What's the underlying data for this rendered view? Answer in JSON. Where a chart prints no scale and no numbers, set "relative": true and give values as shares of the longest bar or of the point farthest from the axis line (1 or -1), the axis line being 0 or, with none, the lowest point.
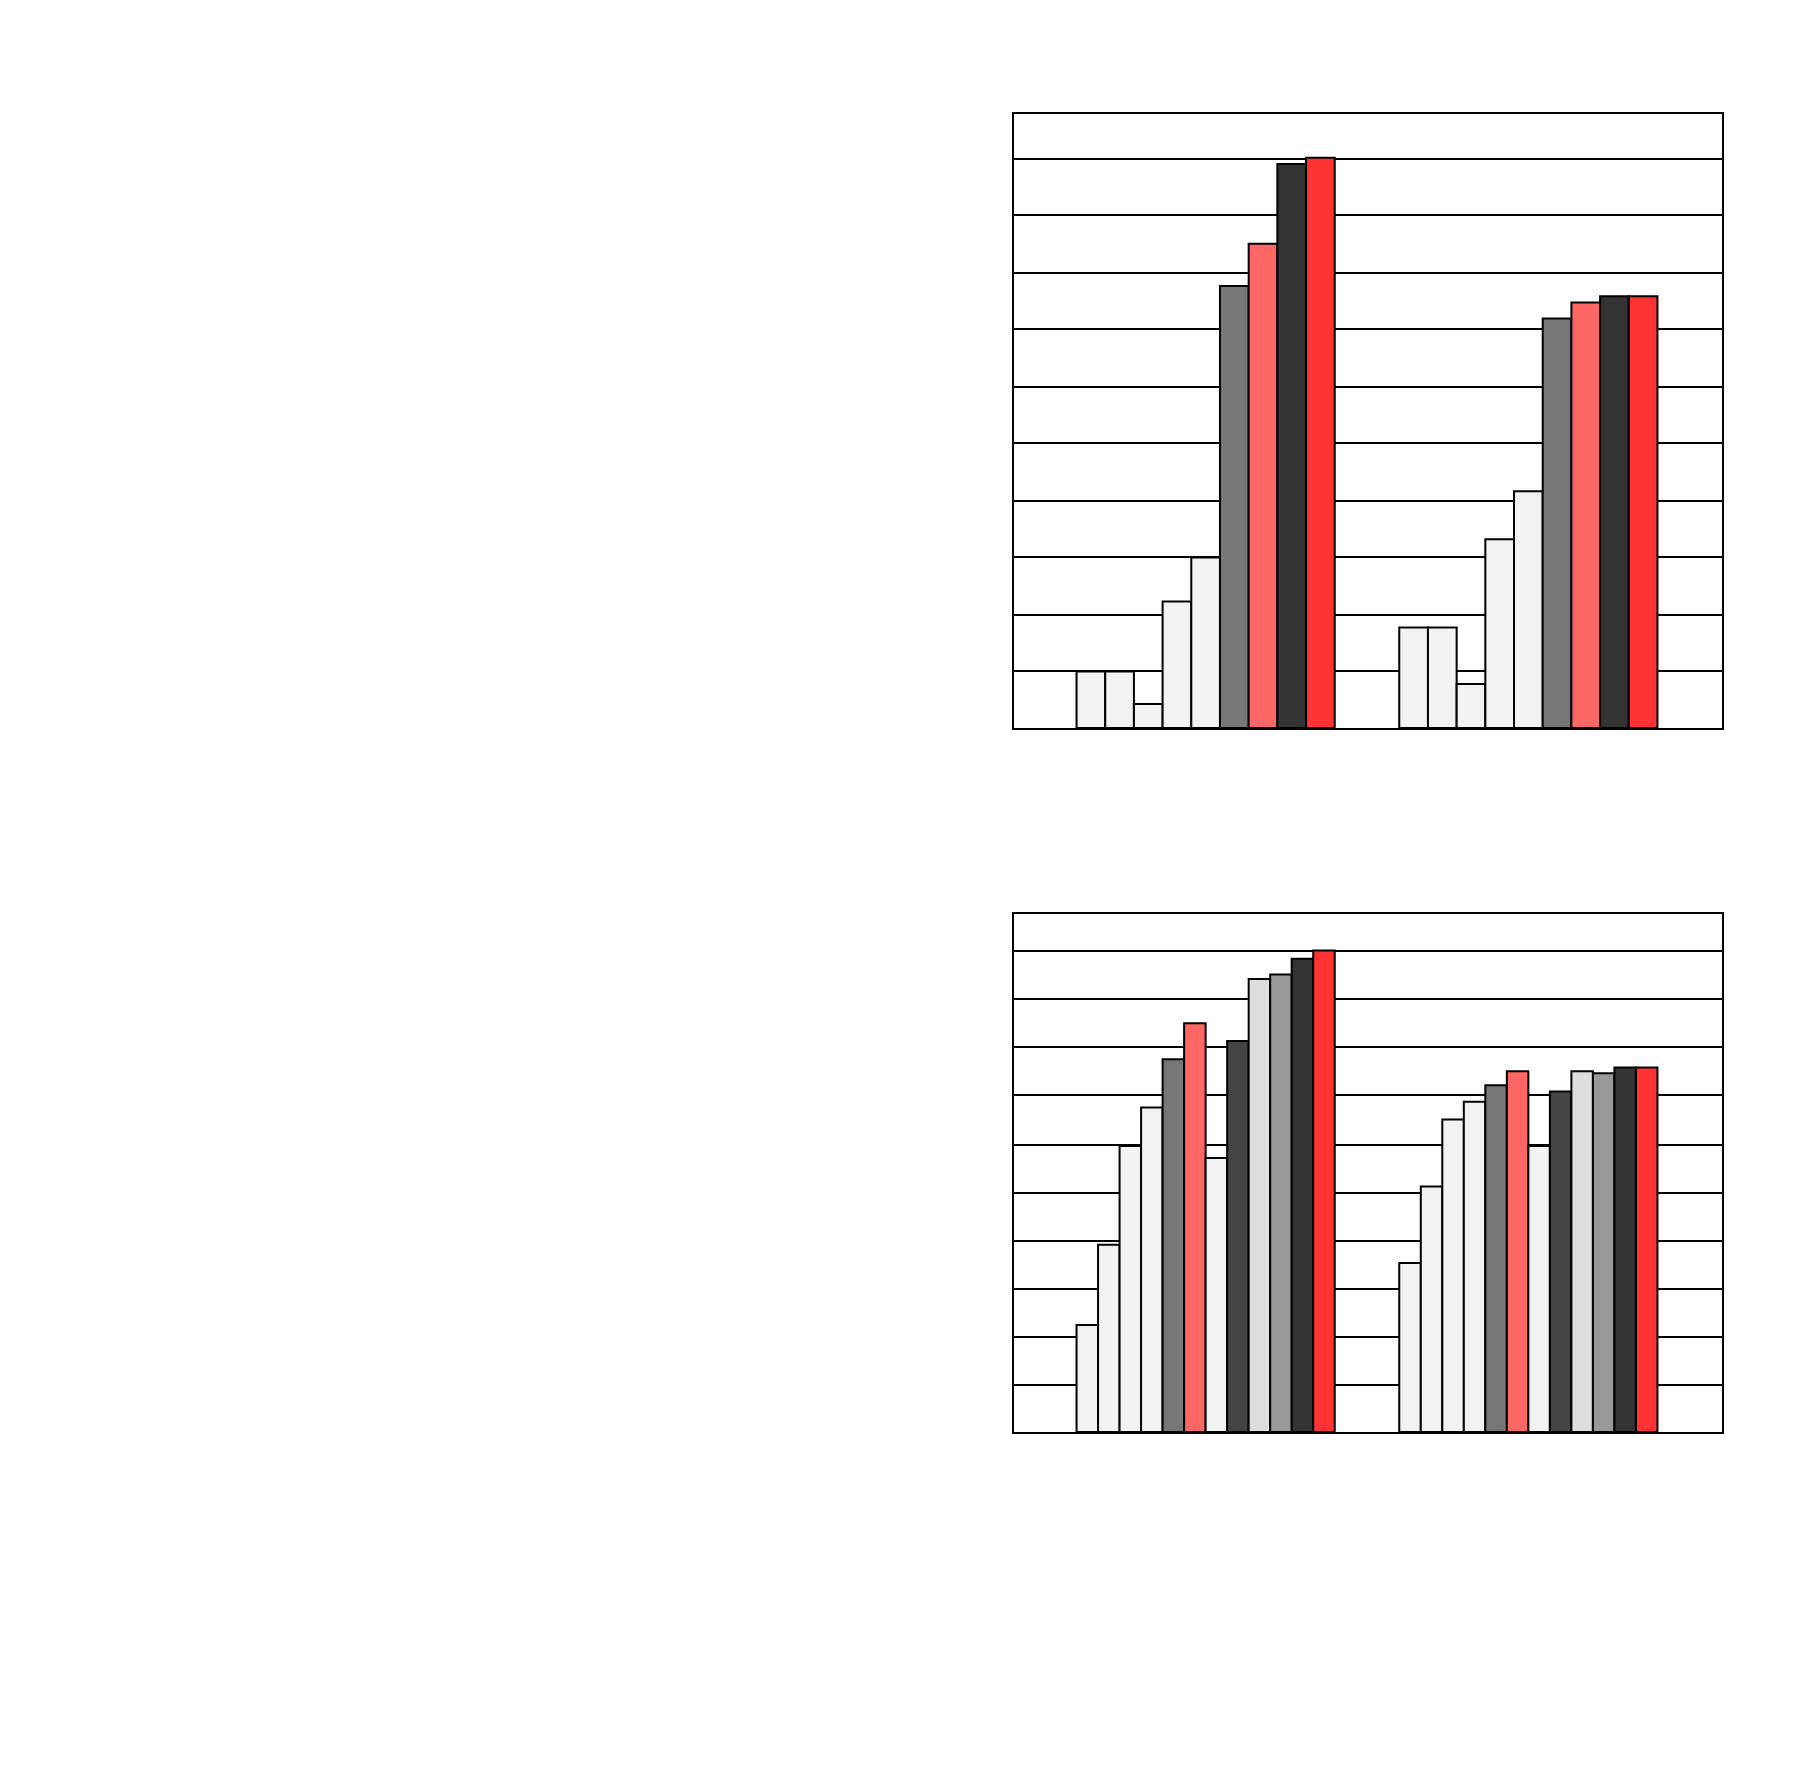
{
  "chart_data": [
    {
      "type": "bar",
      "relative": true,
      "categories": [
        null,
        null
      ],
      "grid": "y",
      "legend": false,
      "series": [
        {
          "color": "#f2f2f2",
          "values": [
            0.099,
            0.176
          ]
        },
        {
          "color": "#f2f2f2",
          "values": [
            0.099,
            0.176
          ]
        },
        {
          "color": "#f2f2f2",
          "values": [
            0.042,
            0.077
          ]
        },
        {
          "color": "#f2f2f2",
          "values": [
            0.222,
            0.331
          ]
        },
        {
          "color": "#f2f2f2",
          "values": [
            0.299,
            0.415
          ]
        },
        {
          "color": "#777777",
          "values": [
            0.775,
            0.718
          ]
        },
        {
          "color": "#ff6666",
          "values": [
            0.849,
            0.746
          ]
        },
        {
          "color": "#333333",
          "values": [
            0.989,
            0.757
          ]
        },
        {
          "color": "#ff3333",
          "values": [
            1,
            0.757
          ]
        }
      ]
    },
    {
      "type": "bar",
      "relative": true,
      "categories": [
        null,
        null
      ],
      "grid": "y",
      "legend": false,
      "series": [
        {
          "color": "#f2f2f2",
          "values": [
            0.222,
            0.351
          ]
        },
        {
          "color": "#f2f2f2",
          "values": [
            0.389,
            0.51
          ]
        },
        {
          "color": "#f2f2f2",
          "values": [
            0.594,
            0.649
          ]
        },
        {
          "color": "#f2f2f2",
          "values": [
            0.674,
            0.686
          ]
        },
        {
          "color": "#777777",
          "values": [
            0.774,
            0.72
          ]
        },
        {
          "color": "#ff6666",
          "values": [
            0.849,
            0.749
          ]
        },
        {
          "color": "#f2f2f2",
          "values": [
            0.569,
            0.594
          ]
        },
        {
          "color": "#444444",
          "values": [
            0.812,
            0.707
          ]
        },
        {
          "color": "#dddddd",
          "values": [
            0.941,
            0.749
          ]
        },
        {
          "color": "#999999",
          "values": [
            0.95,
            0.745
          ]
        },
        {
          "color": "#333333",
          "values": [
            0.983,
            0.757
          ]
        },
        {
          "color": "#ff3333",
          "values": [
            1,
            0.757
          ]
        }
      ]
    }
  ]
}
